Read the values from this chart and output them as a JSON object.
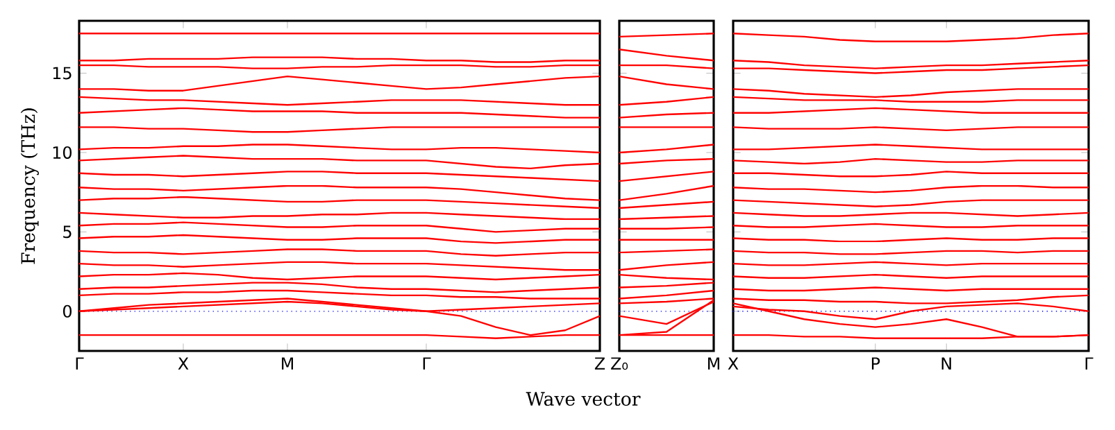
{
  "chart_data": [
    {
      "type": "line",
      "ylabel": "Frequency (THz)",
      "xlabel": "Wave vector",
      "ylim": [
        -2.5,
        18.3
      ],
      "categories": [
        "Γ",
        null,
        null,
        "X",
        null,
        null,
        "M",
        null,
        null,
        null,
        "Γ",
        null,
        null,
        null,
        null,
        "Z"
      ],
      "yticks": [
        0,
        5,
        10,
        15
      ],
      "ref_lines": [
        {
          "axis": "y",
          "value": 0,
          "color": "#0000ff",
          "line_style": "dotted"
        }
      ],
      "series": [
        {
          "color": "#ff0000",
          "values": [
            17.5,
            17.5,
            17.5,
            17.5,
            17.5,
            17.5,
            17.5,
            17.5,
            17.5,
            17.5,
            17.5,
            17.5,
            17.5,
            17.5,
            17.5,
            17.5
          ]
        },
        {
          "color": "#ff0000",
          "values": [
            15.8,
            15.8,
            15.9,
            15.9,
            15.9,
            16.0,
            16.0,
            16.0,
            15.9,
            15.9,
            15.8,
            15.8,
            15.7,
            15.7,
            15.8,
            15.8
          ]
        },
        {
          "color": "#ff0000",
          "values": [
            15.5,
            15.5,
            15.4,
            15.4,
            15.4,
            15.3,
            15.3,
            15.4,
            15.4,
            15.5,
            15.5,
            15.5,
            15.4,
            15.4,
            15.5,
            15.5
          ]
        },
        {
          "color": "#ff0000",
          "values": [
            14.0,
            14.0,
            13.9,
            13.9,
            14.2,
            14.5,
            14.8,
            14.6,
            14.4,
            14.2,
            14.0,
            14.1,
            14.3,
            14.5,
            14.7,
            14.8
          ]
        },
        {
          "color": "#ff0000",
          "values": [
            13.5,
            13.4,
            13.3,
            13.3,
            13.2,
            13.1,
            13.0,
            13.1,
            13.2,
            13.3,
            13.3,
            13.3,
            13.2,
            13.1,
            13.0,
            13.0
          ]
        },
        {
          "color": "#ff0000",
          "values": [
            12.5,
            12.6,
            12.7,
            12.8,
            12.7,
            12.6,
            12.6,
            12.6,
            12.5,
            12.5,
            12.5,
            12.5,
            12.4,
            12.3,
            12.2,
            12.2
          ]
        },
        {
          "color": "#ff0000",
          "values": [
            11.6,
            11.6,
            11.5,
            11.5,
            11.4,
            11.3,
            11.3,
            11.4,
            11.5,
            11.6,
            11.6,
            11.6,
            11.6,
            11.6,
            11.6,
            11.6
          ]
        },
        {
          "color": "#ff0000",
          "values": [
            10.2,
            10.3,
            10.3,
            10.4,
            10.4,
            10.5,
            10.5,
            10.4,
            10.3,
            10.2,
            10.2,
            10.3,
            10.3,
            10.2,
            10.1,
            10.0
          ]
        },
        {
          "color": "#ff0000",
          "values": [
            9.5,
            9.6,
            9.7,
            9.8,
            9.7,
            9.6,
            9.6,
            9.6,
            9.5,
            9.5,
            9.5,
            9.3,
            9.1,
            9.0,
            9.2,
            9.3
          ]
        },
        {
          "color": "#ff0000",
          "values": [
            8.7,
            8.6,
            8.6,
            8.5,
            8.6,
            8.7,
            8.8,
            8.8,
            8.7,
            8.7,
            8.7,
            8.6,
            8.5,
            8.4,
            8.3,
            8.2
          ]
        },
        {
          "color": "#ff0000",
          "values": [
            7.8,
            7.7,
            7.7,
            7.6,
            7.7,
            7.8,
            7.9,
            7.9,
            7.8,
            7.8,
            7.8,
            7.7,
            7.5,
            7.3,
            7.1,
            7.0
          ]
        },
        {
          "color": "#ff0000",
          "values": [
            7.0,
            7.1,
            7.1,
            7.2,
            7.1,
            7.0,
            6.9,
            6.9,
            7.0,
            7.0,
            7.0,
            6.9,
            6.8,
            6.7,
            6.6,
            6.5
          ]
        },
        {
          "color": "#ff0000",
          "values": [
            6.2,
            6.1,
            6.0,
            5.9,
            5.9,
            6.0,
            6.0,
            6.1,
            6.1,
            6.2,
            6.2,
            6.1,
            6.0,
            5.9,
            5.8,
            5.8
          ]
        },
        {
          "color": "#ff0000",
          "values": [
            5.4,
            5.5,
            5.5,
            5.6,
            5.5,
            5.4,
            5.3,
            5.3,
            5.4,
            5.4,
            5.4,
            5.2,
            5.0,
            5.1,
            5.2,
            5.2
          ]
        },
        {
          "color": "#ff0000",
          "values": [
            4.6,
            4.7,
            4.7,
            4.8,
            4.7,
            4.6,
            4.5,
            4.5,
            4.6,
            4.6,
            4.6,
            4.4,
            4.3,
            4.4,
            4.5,
            4.5
          ]
        },
        {
          "color": "#ff0000",
          "values": [
            3.8,
            3.7,
            3.7,
            3.6,
            3.7,
            3.8,
            3.9,
            3.9,
            3.8,
            3.8,
            3.8,
            3.6,
            3.5,
            3.6,
            3.7,
            3.7
          ]
        },
        {
          "color": "#ff0000",
          "values": [
            3.0,
            2.9,
            2.9,
            2.8,
            2.9,
            3.0,
            3.1,
            3.1,
            3.0,
            3.0,
            3.0,
            2.9,
            2.8,
            2.7,
            2.6,
            2.6
          ]
        },
        {
          "color": "#ff0000",
          "values": [
            2.2,
            2.3,
            2.3,
            2.4,
            2.3,
            2.1,
            2.0,
            2.1,
            2.2,
            2.2,
            2.2,
            2.1,
            2.0,
            2.1,
            2.2,
            2.3
          ]
        },
        {
          "color": "#ff0000",
          "values": [
            1.4,
            1.5,
            1.5,
            1.6,
            1.7,
            1.8,
            1.8,
            1.7,
            1.5,
            1.4,
            1.4,
            1.3,
            1.2,
            1.3,
            1.4,
            1.5
          ]
        },
        {
          "color": "#ff0000",
          "values": [
            1.0,
            1.1,
            1.1,
            1.2,
            1.2,
            1.3,
            1.3,
            1.2,
            1.1,
            1.0,
            1.0,
            0.9,
            0.9,
            0.8,
            0.8,
            0.8
          ]
        },
        {
          "color": "#ff0000",
          "values": [
            0,
            0.2,
            0.4,
            0.5,
            0.6,
            0.7,
            0.8,
            0.6,
            0.4,
            0.2,
            0,
            0.1,
            0.2,
            0.3,
            0.4,
            0.5
          ]
        },
        {
          "color": "#ff0000",
          "values": [
            0,
            0.1,
            0.2,
            0.3,
            0.4,
            0.5,
            0.6,
            0.5,
            0.3,
            0.1,
            0,
            -0.3,
            -1.0,
            -1.5,
            -1.2,
            -0.3
          ]
        },
        {
          "color": "#ff0000",
          "values": [
            -1.5,
            -1.5,
            -1.5,
            -1.5,
            -1.5,
            -1.5,
            -1.5,
            -1.5,
            -1.5,
            -1.5,
            -1.5,
            -1.6,
            -1.7,
            -1.6,
            -1.5,
            -1.5
          ]
        }
      ]
    },
    {
      "type": "line",
      "ylim": [
        -2.5,
        18.3
      ],
      "tick_labels": "x",
      "categories": [
        "Z₀",
        null,
        "M"
      ],
      "yticks": [
        0,
        5,
        10,
        15
      ],
      "ref_lines": [
        {
          "axis": "y",
          "value": 0,
          "color": "#0000ff",
          "line_style": "dotted"
        }
      ],
      "series": [
        {
          "color": "#ff0000",
          "values": [
            17.3,
            17.4,
            17.5
          ]
        },
        {
          "color": "#ff0000",
          "values": [
            16.5,
            16.1,
            15.8
          ]
        },
        {
          "color": "#ff0000",
          "values": [
            15.5,
            15.5,
            15.3
          ]
        },
        {
          "color": "#ff0000",
          "values": [
            14.8,
            14.3,
            14.0
          ]
        },
        {
          "color": "#ff0000",
          "values": [
            13.0,
            13.2,
            13.5
          ]
        },
        {
          "color": "#ff0000",
          "values": [
            12.2,
            12.4,
            12.5
          ]
        },
        {
          "color": "#ff0000",
          "values": [
            11.6,
            11.6,
            11.6
          ]
        },
        {
          "color": "#ff0000",
          "values": [
            10.0,
            10.2,
            10.5
          ]
        },
        {
          "color": "#ff0000",
          "values": [
            9.3,
            9.5,
            9.6
          ]
        },
        {
          "color": "#ff0000",
          "values": [
            8.2,
            8.5,
            8.8
          ]
        },
        {
          "color": "#ff0000",
          "values": [
            7.0,
            7.4,
            7.9
          ]
        },
        {
          "color": "#ff0000",
          "values": [
            6.5,
            6.7,
            6.9
          ]
        },
        {
          "color": "#ff0000",
          "values": [
            5.8,
            5.9,
            6.0
          ]
        },
        {
          "color": "#ff0000",
          "values": [
            5.2,
            5.2,
            5.3
          ]
        },
        {
          "color": "#ff0000",
          "values": [
            4.5,
            4.5,
            4.5
          ]
        },
        {
          "color": "#ff0000",
          "values": [
            3.7,
            3.8,
            3.9
          ]
        },
        {
          "color": "#ff0000",
          "values": [
            2.6,
            2.9,
            3.1
          ]
        },
        {
          "color": "#ff0000",
          "values": [
            2.3,
            2.1,
            2.0
          ]
        },
        {
          "color": "#ff0000",
          "values": [
            1.5,
            1.6,
            1.8
          ]
        },
        {
          "color": "#ff0000",
          "values": [
            0.8,
            1.0,
            1.3
          ]
        },
        {
          "color": "#ff0000",
          "values": [
            0.5,
            0.6,
            0.8
          ]
        },
        {
          "color": "#ff0000",
          "values": [
            -0.3,
            -0.8,
            0.6
          ]
        },
        {
          "color": "#ff0000",
          "values": [
            -1.5,
            -1.3,
            0.7
          ]
        },
        {
          "color": "#ff0000",
          "values": [
            -1.5,
            -1.5,
            -1.5
          ]
        }
      ]
    },
    {
      "type": "line",
      "ylim": [
        -2.5,
        18.3
      ],
      "tick_labels": "x",
      "categories": [
        "X",
        null,
        null,
        null,
        "P",
        null,
        "N",
        null,
        null,
        null,
        "Γ"
      ],
      "yticks": [
        0,
        5,
        10,
        15
      ],
      "ref_lines": [
        {
          "axis": "y",
          "value": 0,
          "color": "#0000ff",
          "line_style": "dotted"
        }
      ],
      "series": [
        {
          "color": "#ff0000",
          "values": [
            17.5,
            17.4,
            17.3,
            17.1,
            17.0,
            17.0,
            17.0,
            17.1,
            17.2,
            17.4,
            17.5
          ]
        },
        {
          "color": "#ff0000",
          "values": [
            15.8,
            15.7,
            15.5,
            15.4,
            15.3,
            15.4,
            15.5,
            15.5,
            15.6,
            15.7,
            15.8
          ]
        },
        {
          "color": "#ff0000",
          "values": [
            15.3,
            15.3,
            15.2,
            15.1,
            15.0,
            15.1,
            15.2,
            15.2,
            15.3,
            15.4,
            15.5
          ]
        },
        {
          "color": "#ff0000",
          "values": [
            14.0,
            13.9,
            13.7,
            13.6,
            13.5,
            13.6,
            13.8,
            13.9,
            14.0,
            14.0,
            14.0
          ]
        },
        {
          "color": "#ff0000",
          "values": [
            13.5,
            13.4,
            13.3,
            13.3,
            13.3,
            13.2,
            13.2,
            13.2,
            13.3,
            13.3,
            13.3
          ]
        },
        {
          "color": "#ff0000",
          "values": [
            12.5,
            12.5,
            12.6,
            12.7,
            12.8,
            12.7,
            12.6,
            12.5,
            12.5,
            12.5,
            12.5
          ]
        },
        {
          "color": "#ff0000",
          "values": [
            11.6,
            11.5,
            11.5,
            11.5,
            11.6,
            11.5,
            11.4,
            11.5,
            11.6,
            11.6,
            11.6
          ]
        },
        {
          "color": "#ff0000",
          "values": [
            10.2,
            10.2,
            10.3,
            10.4,
            10.5,
            10.4,
            10.3,
            10.2,
            10.2,
            10.2,
            10.2
          ]
        },
        {
          "color": "#ff0000",
          "values": [
            9.5,
            9.4,
            9.3,
            9.4,
            9.6,
            9.5,
            9.4,
            9.4,
            9.5,
            9.5,
            9.5
          ]
        },
        {
          "color": "#ff0000",
          "values": [
            8.7,
            8.7,
            8.6,
            8.5,
            8.5,
            8.6,
            8.8,
            8.7,
            8.7,
            8.7,
            8.7
          ]
        },
        {
          "color": "#ff0000",
          "values": [
            7.8,
            7.7,
            7.7,
            7.6,
            7.5,
            7.6,
            7.8,
            7.9,
            7.9,
            7.8,
            7.8
          ]
        },
        {
          "color": "#ff0000",
          "values": [
            7.0,
            6.9,
            6.8,
            6.7,
            6.6,
            6.7,
            6.9,
            7.0,
            7.0,
            7.0,
            7.0
          ]
        },
        {
          "color": "#ff0000",
          "values": [
            6.2,
            6.1,
            6.0,
            6.0,
            6.1,
            6.2,
            6.2,
            6.1,
            6.0,
            6.1,
            6.2
          ]
        },
        {
          "color": "#ff0000",
          "values": [
            5.4,
            5.3,
            5.3,
            5.4,
            5.5,
            5.4,
            5.3,
            5.3,
            5.4,
            5.4,
            5.4
          ]
        },
        {
          "color": "#ff0000",
          "values": [
            4.6,
            4.5,
            4.5,
            4.4,
            4.4,
            4.5,
            4.6,
            4.5,
            4.5,
            4.6,
            4.6
          ]
        },
        {
          "color": "#ff0000",
          "values": [
            3.8,
            3.7,
            3.7,
            3.6,
            3.6,
            3.7,
            3.8,
            3.8,
            3.7,
            3.8,
            3.8
          ]
        },
        {
          "color": "#ff0000",
          "values": [
            3.0,
            2.9,
            2.9,
            3.0,
            3.1,
            3.0,
            2.9,
            3.0,
            3.0,
            3.0,
            3.0
          ]
        },
        {
          "color": "#ff0000",
          "values": [
            2.2,
            2.1,
            2.1,
            2.2,
            2.3,
            2.2,
            2.1,
            2.2,
            2.2,
            2.2,
            2.2
          ]
        },
        {
          "color": "#ff0000",
          "values": [
            1.4,
            1.3,
            1.3,
            1.4,
            1.5,
            1.4,
            1.3,
            1.4,
            1.4,
            1.4,
            1.4
          ]
        },
        {
          "color": "#ff0000",
          "values": [
            0.8,
            0.7,
            0.7,
            0.6,
            0.6,
            0.5,
            0.5,
            0.6,
            0.7,
            0.9,
            1.0
          ]
        },
        {
          "color": "#ff0000",
          "values": [
            0.3,
            0.1,
            0,
            -0.3,
            -0.5,
            0,
            0.3,
            0.4,
            0.5,
            0.3,
            0
          ]
        },
        {
          "color": "#ff0000",
          "values": [
            0.5,
            0,
            -0.5,
            -0.8,
            -1.0,
            -0.8,
            -0.5,
            -1.0,
            -1.6,
            -1.6,
            -1.5
          ]
        },
        {
          "color": "#ff0000",
          "values": [
            -1.5,
            -1.5,
            -1.6,
            -1.6,
            -1.7,
            -1.7,
            -1.7,
            -1.7,
            -1.6,
            -1.6,
            -1.5
          ]
        }
      ]
    }
  ]
}
